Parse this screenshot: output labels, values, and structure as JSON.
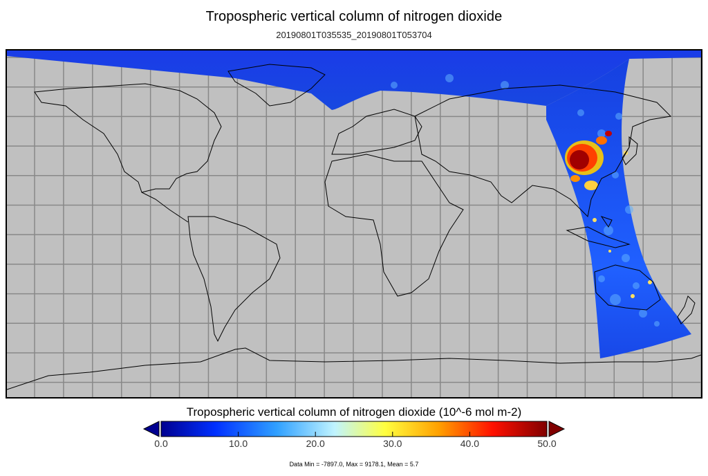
{
  "title": "Tropospheric vertical column of nitrogen dioxide",
  "subtitle": "20190801T035535_20190801T053704",
  "map": {
    "projection": "equirectangular",
    "background_color": "#c0c0c0",
    "grid_color": "#808080",
    "coastline_color": "#000000",
    "grid_spacing_degrees": 15,
    "coverage": "Single orbit swath over East Asia / Australia plus the northern polar region",
    "hotspot_region": "Eastern China"
  },
  "colorbar": {
    "label": "Tropospheric vertical column of nitrogen dioxide (10^-6 mol m-2)",
    "ticks": [
      "0.0",
      "10.0",
      "20.0",
      "30.0",
      "40.0",
      "50.0"
    ],
    "range": [
      0,
      50
    ],
    "extend": "both",
    "colors": [
      "#000090",
      "#0030ff",
      "#30a0ff",
      "#c0f4ff",
      "#ffff40",
      "#ffa000",
      "#ff1000",
      "#800000"
    ]
  },
  "stats": "Data Min = -7897.0, Max = 9178.1, Mean = 5.7"
}
